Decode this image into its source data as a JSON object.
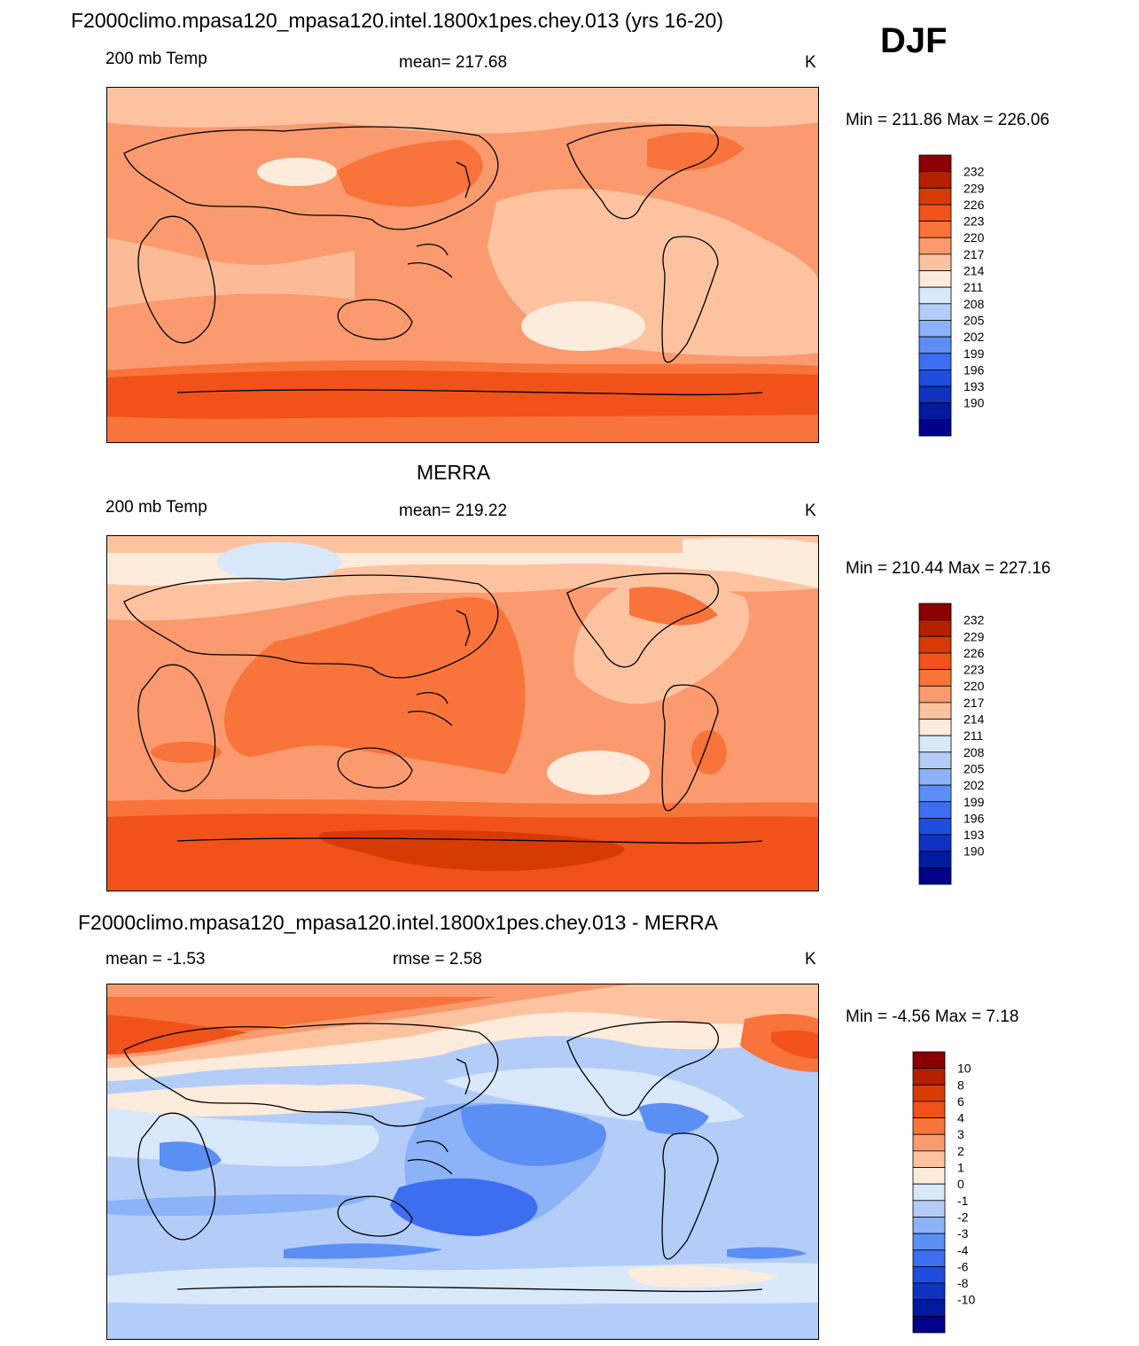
{
  "season": "DJF",
  "panels": [
    {
      "id": "model",
      "title": "F2000climo.mpasa120_mpasa120.intel.1800x1pes.chey.013 (yrs 16-20)",
      "left_label": "200 mb Temp",
      "center_label": "mean= 217.68",
      "units": "K",
      "minmax": "Min = 211.86 Max = 226.06",
      "colorbar": {
        "colors": [
          "#8b0000",
          "#b22000",
          "#d63b06",
          "#f0521a",
          "#f8743a",
          "#fa9a6e",
          "#fdc3a1",
          "#fdebdb",
          "#d9e8fb",
          "#b3cdf8",
          "#8cb2f7",
          "#5c8ff3",
          "#3e6ef0",
          "#1e4ede",
          "#0f33bf",
          "#001a9e",
          "#00008b"
        ],
        "labels": [
          "232",
          "229",
          "226",
          "223",
          "220",
          "217",
          "214",
          "211",
          "208",
          "205",
          "202",
          "199",
          "196",
          "193",
          "190"
        ]
      }
    },
    {
      "id": "obs",
      "title": "MERRA",
      "left_label": "200 mb Temp",
      "center_label": "mean= 219.22",
      "units": "K",
      "minmax": "Min = 210.44 Max = 227.16",
      "colorbar": {
        "colors": [
          "#8b0000",
          "#b22000",
          "#d63b06",
          "#f0521a",
          "#f8743a",
          "#fa9a6e",
          "#fdc3a1",
          "#fdebdb",
          "#d9e8fb",
          "#b3cdf8",
          "#8cb2f7",
          "#5c8ff3",
          "#3e6ef0",
          "#1e4ede",
          "#0f33bf",
          "#001a9e",
          "#00008b"
        ],
        "labels": [
          "232",
          "229",
          "226",
          "223",
          "220",
          "217",
          "214",
          "211",
          "208",
          "205",
          "202",
          "199",
          "196",
          "193",
          "190"
        ]
      }
    },
    {
      "id": "diff",
      "title": "F2000climo.mpasa120_mpasa120.intel.1800x1pes.chey.013 - MERRA",
      "left_label": "mean =  -1.53",
      "center_label": "rmse =   2.58",
      "units": "K",
      "minmax": "Min =  -4.56 Max =   7.18",
      "colorbar": {
        "colors": [
          "#8b0000",
          "#b22000",
          "#d63b06",
          "#f0521a",
          "#f8743a",
          "#fa9a6e",
          "#fdc3a1",
          "#fdebdb",
          "#d9e8fb",
          "#b3cdf8",
          "#8cb2f7",
          "#5c8ff3",
          "#3e6ef0",
          "#1e4ede",
          "#0f33bf",
          "#001a9e",
          "#00008b"
        ],
        "labels": [
          "10",
          "8",
          "6",
          "4",
          "3",
          "2",
          "1",
          "0",
          "-1",
          "-2",
          "-3",
          "-4",
          "-6",
          "-8",
          "-10"
        ]
      }
    }
  ],
  "palette": {
    "c211": "#fdebdb",
    "c214": "#fdc3a1",
    "c217": "#fa9a6e",
    "c220": "#f8743a",
    "c223": "#f0521a",
    "c226": "#d63b06",
    "b1": "#d9e8fb",
    "b2": "#b3cdf8",
    "b3": "#8cb2f7",
    "b4": "#5c8ff3",
    "b5": "#3e6ef0"
  }
}
